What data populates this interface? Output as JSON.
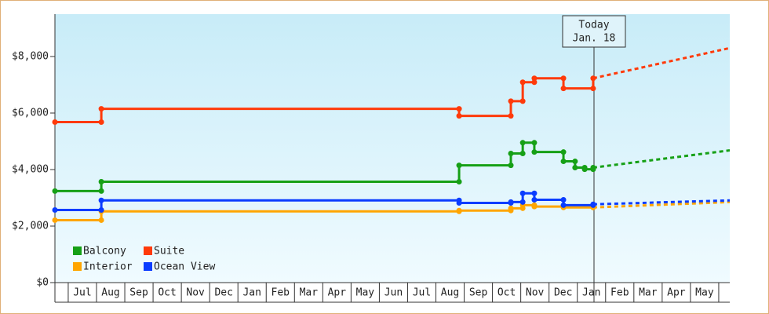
{
  "chart_data": {
    "type": "step-line",
    "xlim": [
      -0.47,
      23.39
    ],
    "xticks": [
      {
        "value": 0.5,
        "label": "Jul"
      },
      {
        "value": 1.5,
        "label": "Aug"
      },
      {
        "value": 2.5,
        "label": "Sep"
      },
      {
        "value": 3.5,
        "label": "Oct"
      },
      {
        "value": 4.5,
        "label": "Nov"
      },
      {
        "value": 5.5,
        "label": "Dec"
      },
      {
        "value": 6.5,
        "label": "Jan"
      },
      {
        "value": 7.5,
        "label": "Feb"
      },
      {
        "value": 8.5,
        "label": "Mar"
      },
      {
        "value": 9.5,
        "label": "Apr"
      },
      {
        "value": 10.5,
        "label": "May"
      },
      {
        "value": 11.5,
        "label": "Jun"
      },
      {
        "value": 12.5,
        "label": "Jul"
      },
      {
        "value": 13.5,
        "label": "Aug"
      },
      {
        "value": 14.5,
        "label": "Sep"
      },
      {
        "value": 15.5,
        "label": "Oct"
      },
      {
        "value": 16.5,
        "label": "Nov"
      },
      {
        "value": 17.5,
        "label": "Dec"
      },
      {
        "value": 18.5,
        "label": "Jan"
      },
      {
        "value": 19.5,
        "label": "Feb"
      },
      {
        "value": 20.5,
        "label": "Mar"
      },
      {
        "value": 21.5,
        "label": "Apr"
      },
      {
        "value": 22.5,
        "label": "May"
      }
    ],
    "ylim": [
      0,
      9500
    ],
    "yticks": [
      {
        "value": 0,
        "label": "$0"
      },
      {
        "value": 2000,
        "label": "$2,000"
      },
      {
        "value": 4000,
        "label": "$4,000"
      },
      {
        "value": 6000,
        "label": "$6,000"
      },
      {
        "value": 8000,
        "label": "$8,000"
      }
    ],
    "annotation": {
      "text": [
        "Today",
        "Jan. 18"
      ],
      "x": 18.59
    },
    "forecast_x": [
      18.56,
      23.39
    ],
    "series": [
      {
        "name": "Balcony",
        "color": "#16a016",
        "x": [
          -0.47,
          1.17,
          13.82,
          15.65,
          16.07,
          16.48,
          17.51,
          17.92,
          18.26,
          18.56
        ],
        "values": [
          3240,
          3570,
          4150,
          4570,
          4950,
          4620,
          4290,
          4070,
          4010,
          4070
        ],
        "forecast_values": [
          4070,
          4680
        ]
      },
      {
        "name": "Suite",
        "color": "#ff3a0a",
        "x": [
          -0.47,
          1.17,
          13.82,
          15.65,
          16.07,
          16.48,
          17.51,
          18.56
        ],
        "values": [
          5680,
          6150,
          5900,
          6420,
          7090,
          7230,
          6870,
          7230
        ],
        "forecast_values": [
          7230,
          8300
        ]
      },
      {
        "name": "Interior",
        "color": "#ffa500",
        "x": [
          -0.47,
          1.17,
          13.82,
          15.65,
          16.07,
          16.48,
          17.51,
          18.56
        ],
        "values": [
          2210,
          2520,
          2550,
          2630,
          2740,
          2690,
          2660,
          2660
        ],
        "forecast_values": [
          2660,
          2850
        ]
      },
      {
        "name": "Ocean View",
        "color": "#0a3cff",
        "x": [
          -0.47,
          1.17,
          13.82,
          15.65,
          16.07,
          16.48,
          17.51,
          18.56
        ],
        "values": [
          2570,
          2910,
          2820,
          2850,
          3160,
          2930,
          2740,
          2770
        ],
        "forecast_values": [
          2770,
          2910
        ]
      }
    ]
  }
}
